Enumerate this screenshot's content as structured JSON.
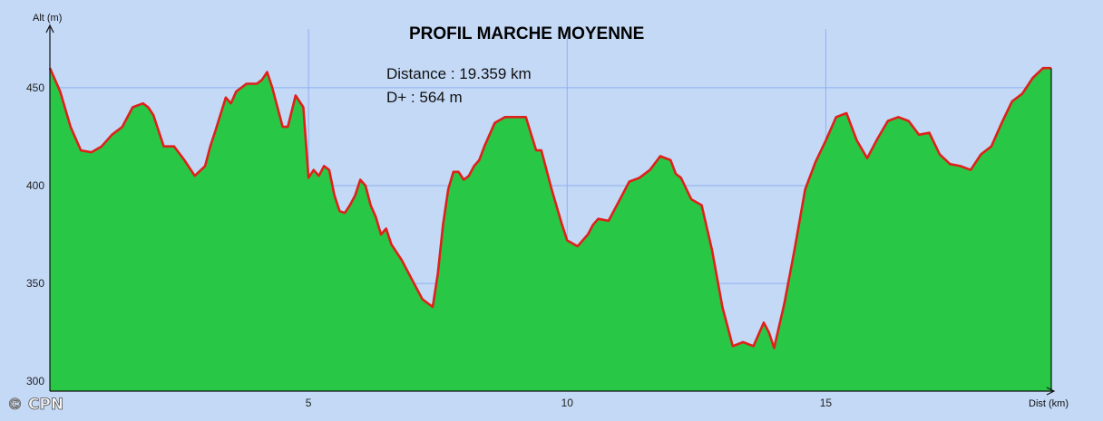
{
  "chart_data": {
    "type": "area",
    "title": "PROFIL MARCHE MOYENNE",
    "annotations": [
      "Distance : 19.359 km",
      "D+ : 564  m"
    ],
    "ylabel": "Alt (m)",
    "xlabel": "Dist (km)",
    "xlim": [
      0,
      19.359
    ],
    "ylim": [
      295,
      480
    ],
    "x_ticks": [
      5,
      10,
      15
    ],
    "y_ticks": [
      300,
      350,
      400,
      450
    ],
    "grid": true,
    "colors": {
      "fill": "#28c846",
      "line": "#e0201a",
      "background": "#c4d9f6",
      "grid": "#8fb0ef"
    },
    "series": [
      {
        "x": [
          0,
          0.2,
          0.4,
          0.6,
          0.8,
          1.0,
          1.2,
          1.4,
          1.6,
          1.7,
          1.8,
          1.9,
          2.0,
          2.2,
          2.4,
          2.6,
          2.8,
          3.0,
          3.1,
          3.2,
          3.4,
          3.5,
          3.6,
          3.8,
          4.0,
          4.1,
          4.2,
          4.3,
          4.4,
          4.5,
          4.6,
          4.75,
          4.9,
          5.0,
          5.1,
          5.2,
          5.3,
          5.4,
          5.5,
          5.6,
          5.7,
          5.8,
          5.9,
          6.0,
          6.1,
          6.2,
          6.3,
          6.4,
          6.5,
          6.6,
          6.8,
          7.0,
          7.2,
          7.4,
          7.5,
          7.6,
          7.7,
          7.8,
          7.9,
          8.0,
          8.1,
          8.2,
          8.3,
          8.4,
          8.6,
          8.8,
          9.0,
          9.2,
          9.4,
          9.5,
          9.7,
          9.9,
          10.0,
          10.2,
          10.4,
          10.5,
          10.6,
          10.8,
          11.0,
          11.2,
          11.4,
          11.6,
          11.8,
          12.0,
          12.1,
          12.2,
          12.4,
          12.6,
          12.8,
          13.0,
          13.2,
          13.4,
          13.6,
          13.7,
          13.8,
          13.9,
          14.0,
          14.2,
          14.4,
          14.6,
          14.8,
          15.0,
          15.2,
          15.4,
          15.6,
          15.8,
          16.0,
          16.2,
          16.4,
          16.6,
          16.8,
          17.0,
          17.2,
          17.4,
          17.6,
          17.8,
          18.0,
          18.2,
          18.4,
          18.6,
          18.8,
          19.0,
          19.2,
          19.359
        ],
        "y": [
          460,
          448,
          430,
          418,
          417,
          420,
          426,
          430,
          440,
          441,
          442,
          440,
          436,
          420,
          420,
          413,
          405,
          410,
          420,
          428,
          445,
          442,
          448,
          452,
          452,
          454,
          458,
          450,
          440,
          430,
          430,
          446,
          440,
          404,
          408,
          405,
          410,
          408,
          395,
          387,
          386,
          390,
          395,
          403,
          400,
          390,
          384,
          375,
          378,
          370,
          362,
          352,
          342,
          338,
          355,
          380,
          398,
          407,
          407,
          403,
          405,
          410,
          413,
          420,
          432,
          435,
          435,
          435,
          418,
          418,
          398,
          380,
          372,
          369,
          375,
          380,
          383,
          382,
          392,
          402,
          404,
          408,
          415,
          413,
          406,
          404,
          393,
          390,
          367,
          338,
          318,
          320,
          318,
          324,
          330,
          325,
          317,
          340,
          368,
          398,
          412,
          423,
          435,
          437,
          423,
          414,
          424,
          433,
          435,
          433,
          426,
          427,
          416,
          411,
          410,
          408,
          416,
          420,
          432,
          443,
          447,
          455,
          460,
          460
        ]
      }
    ]
  },
  "watermark": "© CPN"
}
